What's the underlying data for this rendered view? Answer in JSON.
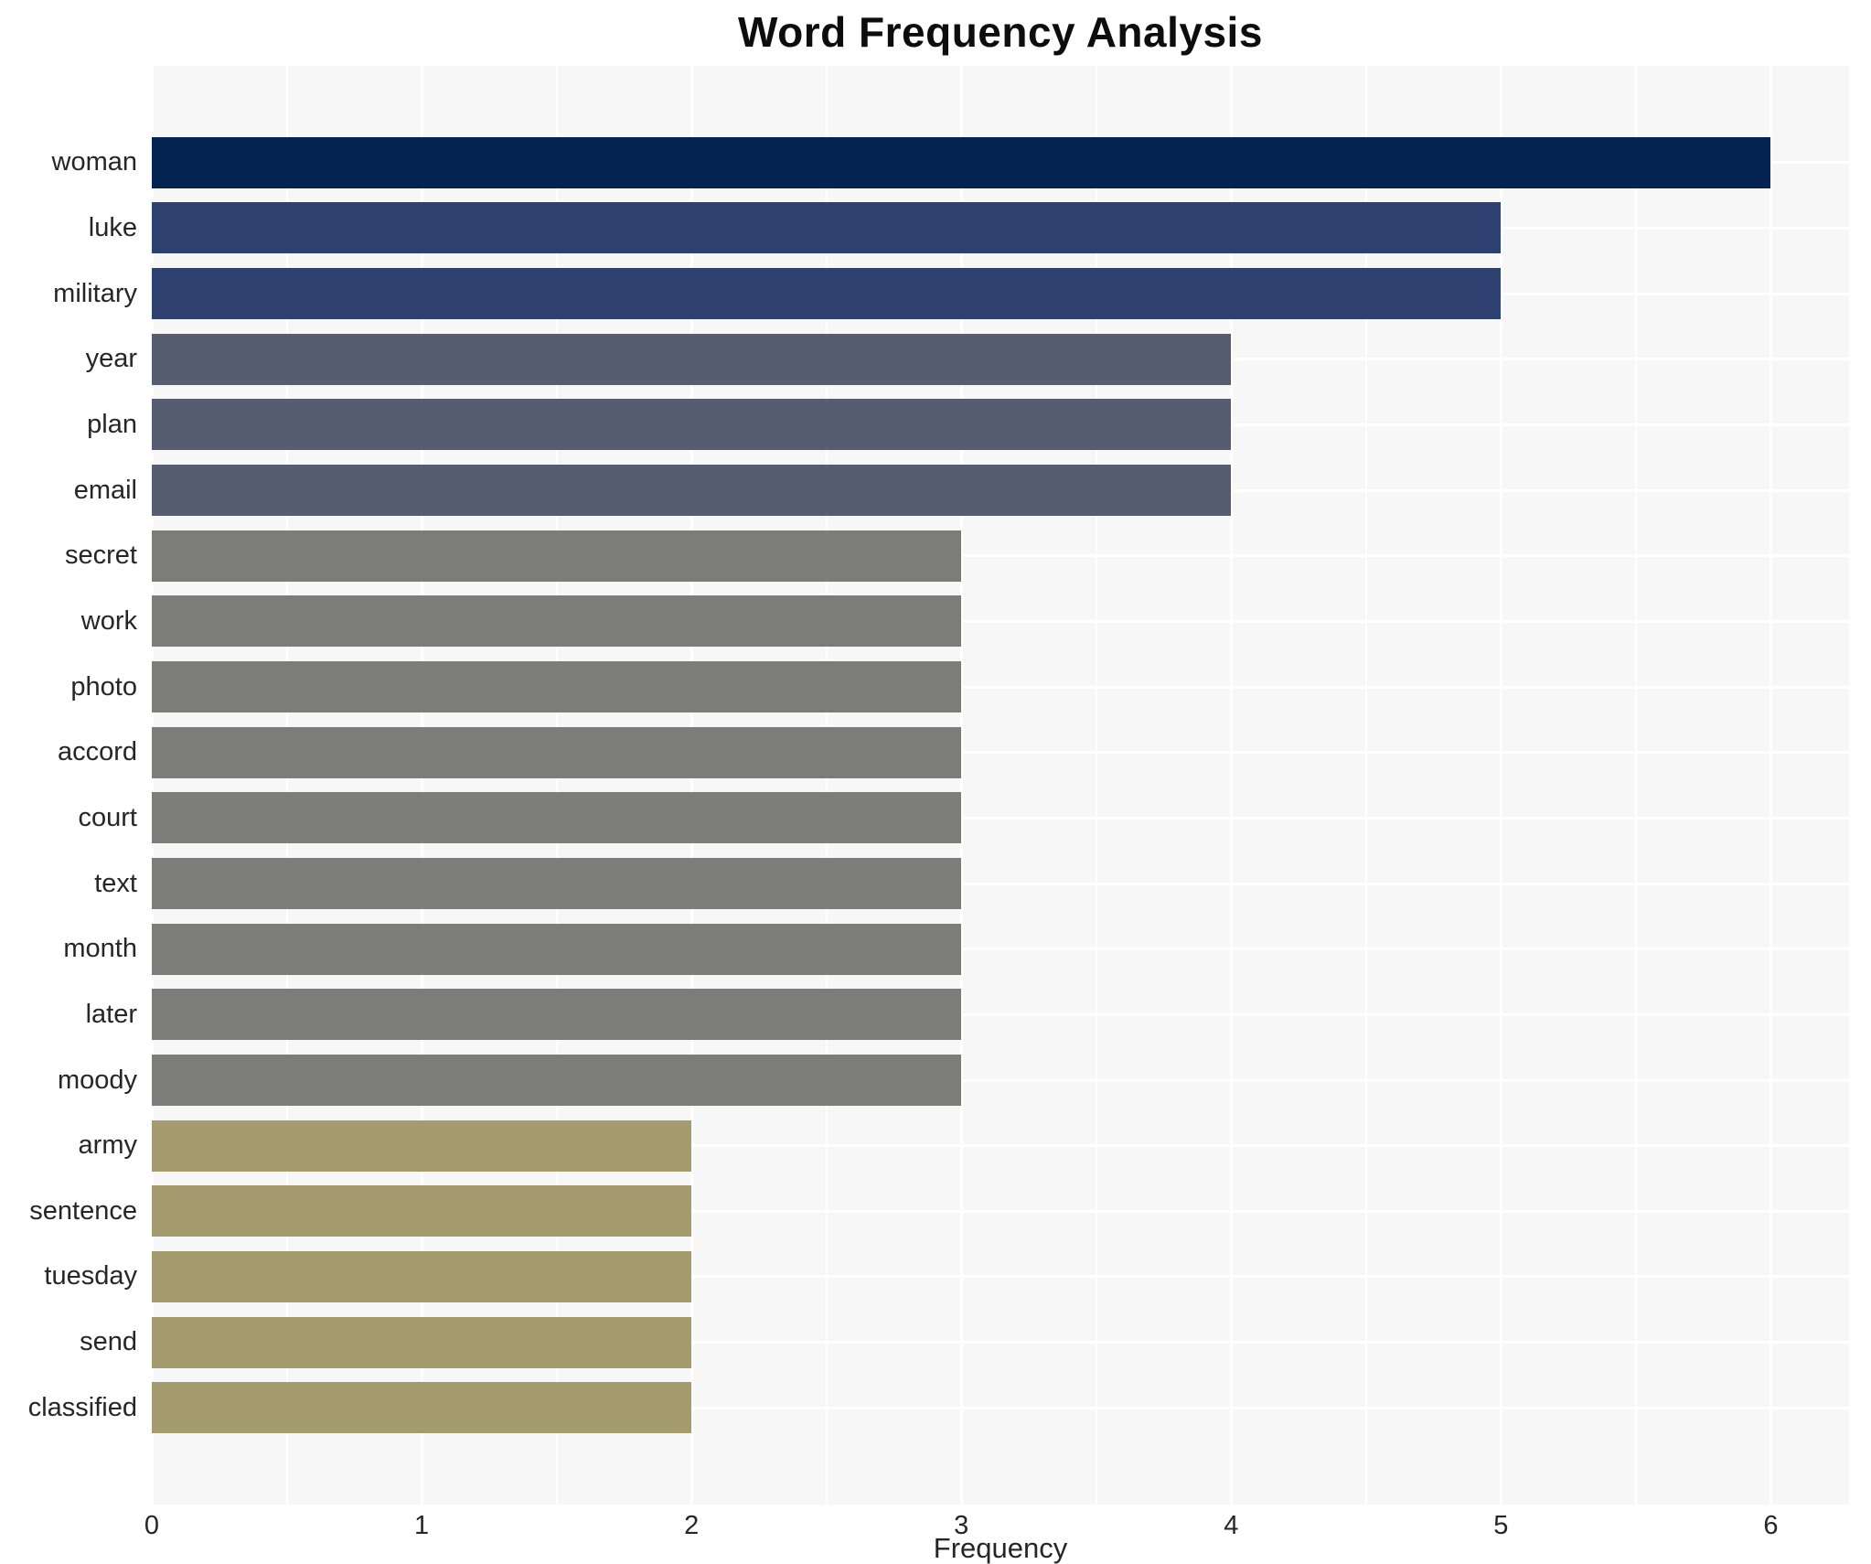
{
  "title": "Word Frequency Analysis",
  "xaxis_label": "Frequency",
  "chart_data": {
    "type": "bar",
    "orientation": "horizontal",
    "title": "Word Frequency Analysis",
    "xlabel": "Frequency",
    "ylabel": "",
    "categories": [
      "woman",
      "luke",
      "military",
      "year",
      "plan",
      "email",
      "secret",
      "work",
      "photo",
      "accord",
      "court",
      "text",
      "month",
      "later",
      "moody",
      "army",
      "sentence",
      "tuesday",
      "send",
      "classified"
    ],
    "values": [
      6,
      5,
      5,
      4,
      4,
      4,
      3,
      3,
      3,
      3,
      3,
      3,
      3,
      3,
      3,
      2,
      2,
      2,
      2,
      2
    ],
    "xticks": [
      0,
      1,
      2,
      3,
      4,
      5,
      6
    ],
    "xlim": [
      0,
      6.29
    ],
    "grid": true,
    "legend": false,
    "panel_background": "#f7f7f7",
    "grid_color": "#ffffff",
    "axis_text_color": "#262626",
    "title_color": "#0d0d0d",
    "bar_colors_by_value": {
      "6": "#052350",
      "5": "#2d4070",
      "4": "#565d70",
      "3": "#7c7c78",
      "2": "#a49b6e"
    }
  }
}
